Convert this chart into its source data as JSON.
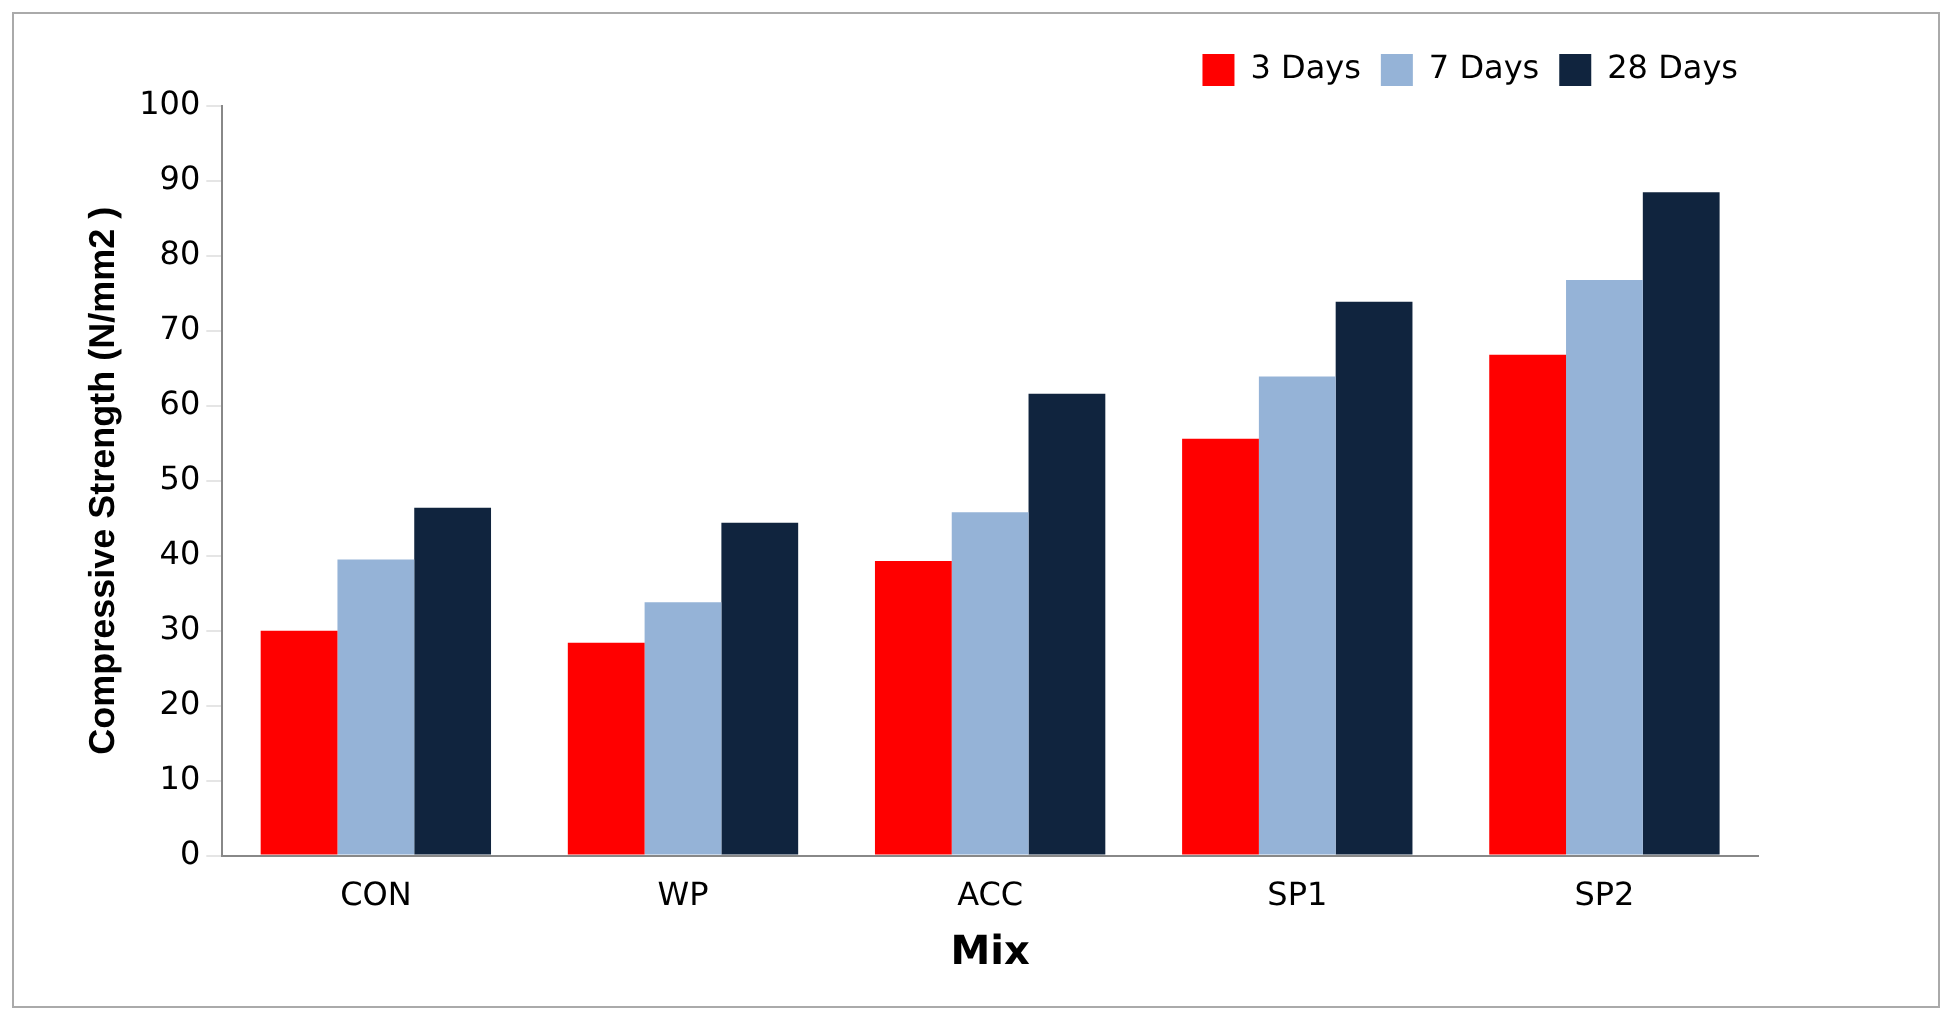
{
  "chart_data": {
    "type": "bar",
    "xlabel": "Mix",
    "ylabel": "Compressive Strength (N/mm2 )",
    "categories": [
      "CON",
      "WP",
      "ACC",
      "SP1",
      "SP2"
    ],
    "series": [
      {
        "name": "3 Days",
        "color": "#ff0000",
        "values": [
          30,
          28.4,
          39.3,
          55.6,
          66.8
        ]
      },
      {
        "name": "7 Days",
        "color": "#95b3d7",
        "values": [
          39.5,
          33.8,
          45.8,
          63.9,
          76.8
        ]
      },
      {
        "name": "28 Days",
        "color": "#10243e",
        "values": [
          46.4,
          44.4,
          61.6,
          73.9,
          88.5
        ]
      }
    ],
    "ylim": [
      0,
      100
    ],
    "yticks": [
      0,
      10,
      20,
      30,
      40,
      50,
      60,
      70,
      80,
      90,
      100
    ],
    "grid": false,
    "legend": "top right"
  }
}
